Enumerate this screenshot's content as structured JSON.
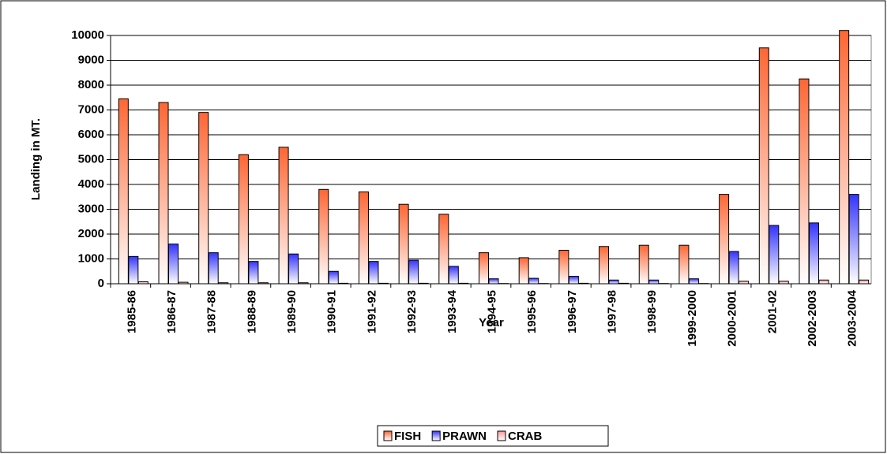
{
  "chart_data": {
    "type": "bar",
    "y_label": "Landing in MT.",
    "x_label": "Year",
    "categories": [
      "1985-86",
      "1986-87",
      "1987-88",
      "1988-89",
      "1989-90",
      "1990-91",
      "1991-92",
      "1992-93",
      "1993-94",
      "1994-95",
      "1995-96",
      "1996-97",
      "1997-98",
      "1998-99",
      "1999-2000",
      "2000-2001",
      "2001-02",
      "2002-2003",
      "2003-2004"
    ],
    "series": [
      {
        "name": "FISH",
        "color": "#ff6633",
        "values": [
          7450,
          7300,
          6900,
          5200,
          5500,
          3800,
          3700,
          3200,
          2800,
          1250,
          1050,
          1350,
          1500,
          1550,
          1550,
          3600,
          9500,
          8250,
          10200
        ]
      },
      {
        "name": "PRAWN",
        "color": "#3333ff",
        "values": [
          1100,
          1600,
          1250,
          900,
          1200,
          500,
          900,
          950,
          700,
          200,
          220,
          300,
          150,
          150,
          200,
          1300,
          2350,
          2450,
          3600
        ]
      },
      {
        "name": "CRAB",
        "color": "#ff9999",
        "values": [
          80,
          60,
          40,
          40,
          40,
          20,
          20,
          20,
          20,
          10,
          10,
          20,
          20,
          10,
          10,
          100,
          100,
          150,
          150
        ]
      }
    ],
    "ylim": [
      0,
      10000
    ],
    "yticks": [
      0,
      1000,
      2000,
      3000,
      4000,
      5000,
      6000,
      7000,
      8000,
      9000,
      10000
    ],
    "grid": true
  }
}
